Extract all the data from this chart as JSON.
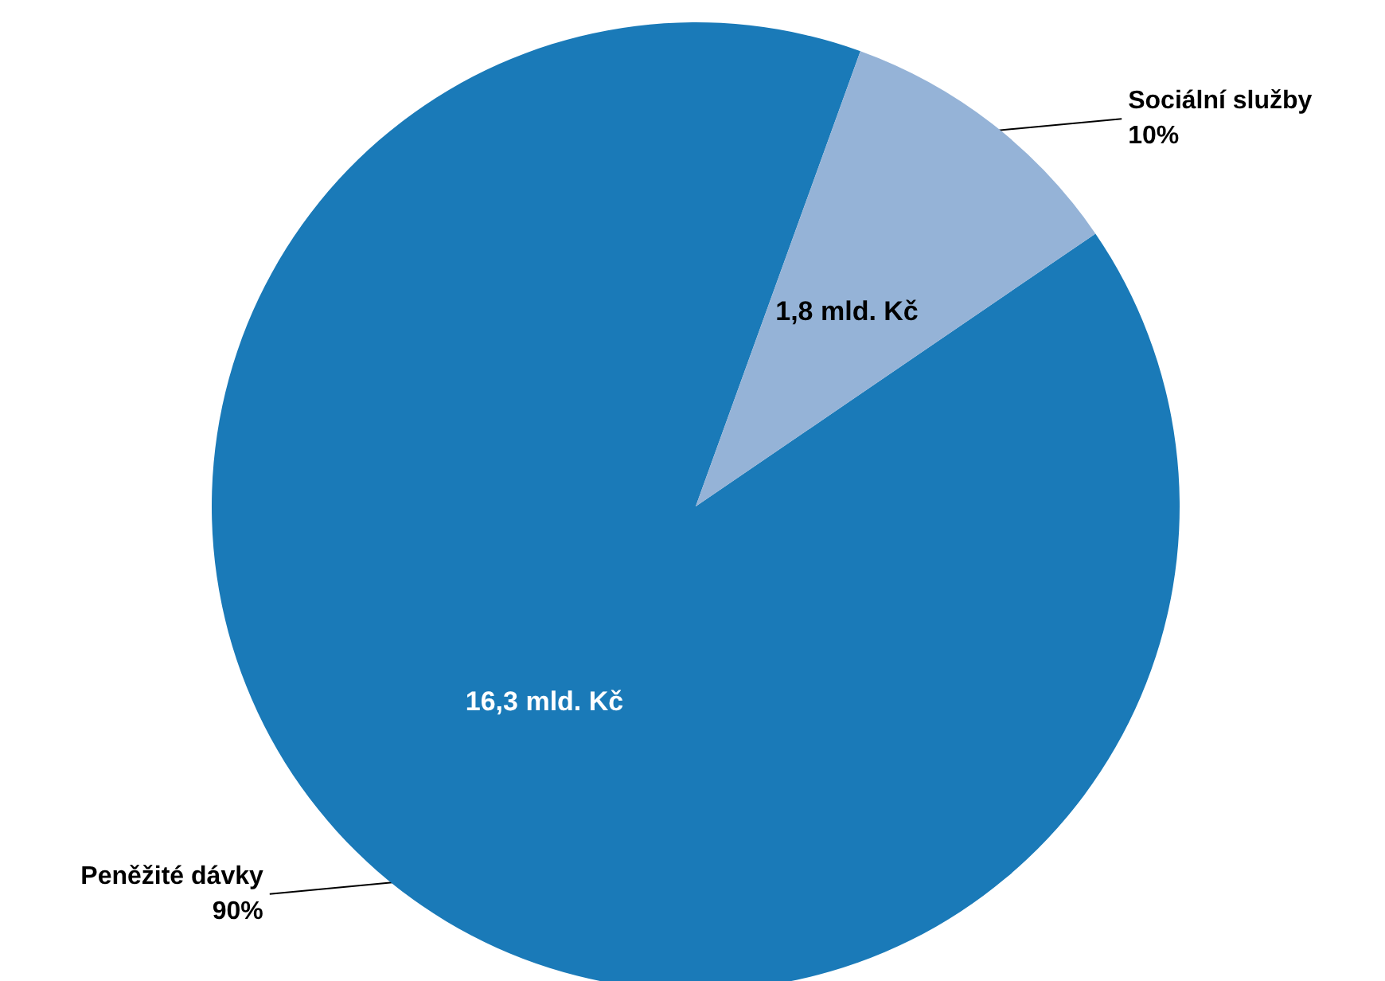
{
  "chart_data": {
    "type": "pie",
    "categories": [
      "Peněžité dávky",
      "Sociální služby"
    ],
    "values": [
      16.3,
      1.8
    ],
    "colors": [
      "#1a7ab8",
      "#95b3d7"
    ],
    "value_labels": [
      "16,3 mld. Kč",
      "1,8 mld. Kč"
    ],
    "annotations": [
      "90%",
      "10%"
    ],
    "legend": false
  }
}
